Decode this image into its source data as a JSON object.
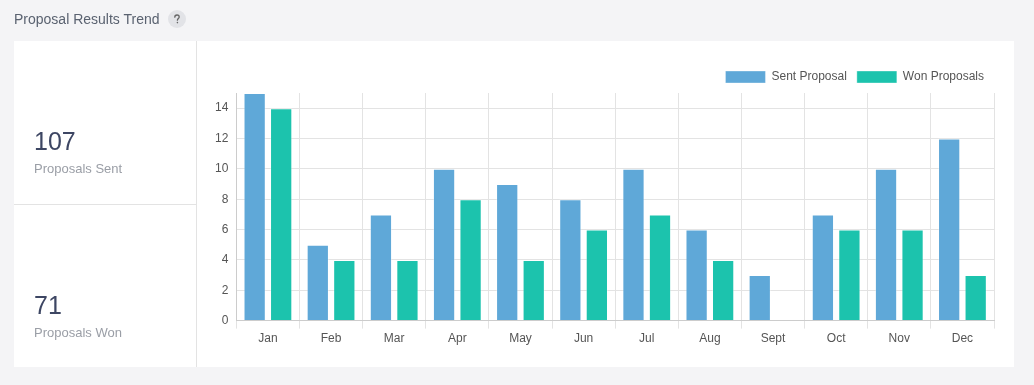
{
  "chart_data": [
    {
      "type": "other",
      "annotations": [
        "107",
        "Proposals Sent",
        "71",
        "Proposals Won"
      ]
    },
    {
      "type": "bar",
      "title": "Proposal Results Trend",
      "categories": [
        "Jan",
        "Feb",
        "Mar",
        "Apr",
        "May",
        "Jun",
        "Jul",
        "Aug",
        "Sept",
        "Oct",
        "Nov",
        "Dec"
      ],
      "series": [
        {
          "name": "Sent Proposal",
          "color": "#5fa8d8",
          "values": [
            15,
            5,
            7,
            10,
            9,
            8,
            10,
            6,
            3,
            7,
            10,
            12
          ]
        },
        {
          "name": "Won Proposals",
          "color": "#1cc3ad",
          "values": [
            14,
            4,
            4,
            8,
            4,
            6,
            7,
            4,
            0,
            6,
            6,
            3
          ]
        }
      ],
      "ylim": [
        0,
        15
      ],
      "yticks": [
        0,
        2,
        4,
        6,
        8,
        10,
        12,
        14
      ],
      "grid": true,
      "legend": "top right"
    }
  ]
}
